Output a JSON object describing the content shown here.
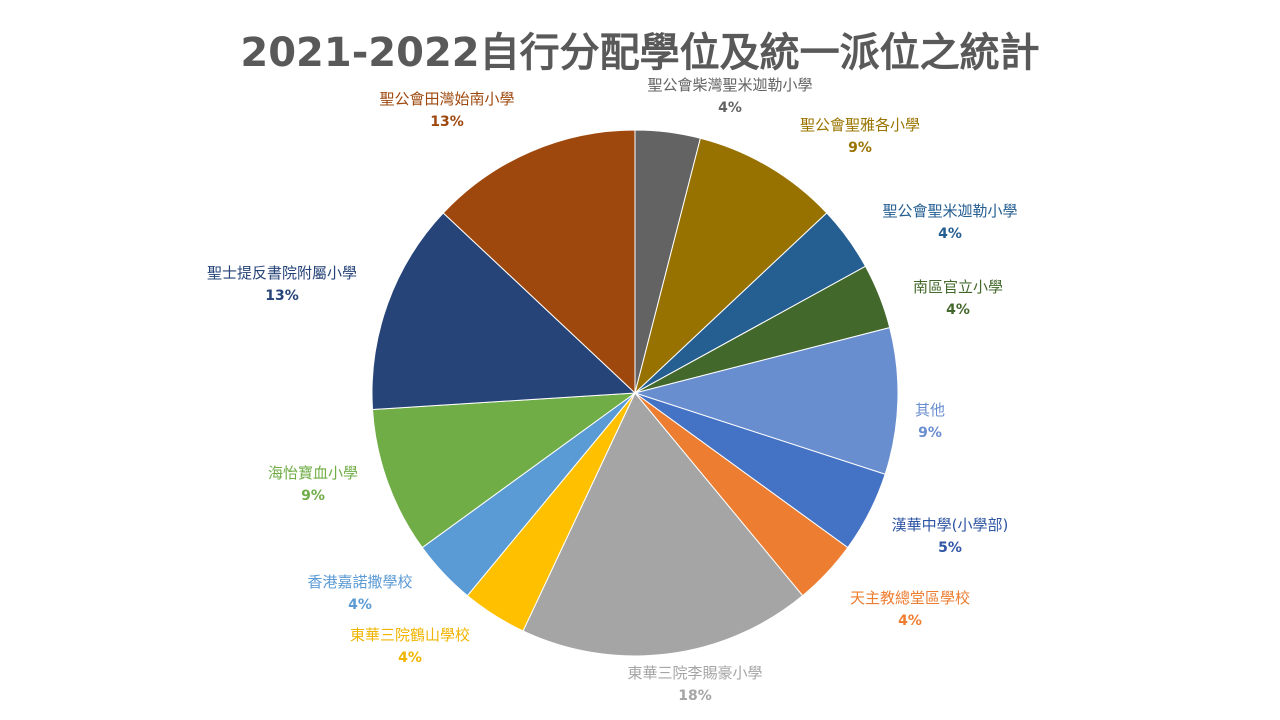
{
  "chart_data": {
    "type": "pie",
    "title": "2021-2022自行分配學位及統一派位之統計",
    "start_angle_deg": 0,
    "direction": "clockwise",
    "slices": [
      {
        "name": "聖公會柴灣聖米迦勒小學",
        "value": 4,
        "label": "4%",
        "color": "#636363",
        "label_color": "#636363"
      },
      {
        "name": "聖公會聖雅各小學",
        "value": 9,
        "label": "9%",
        "color": "#977200",
        "label_color": "#9a7400"
      },
      {
        "name": "聖公會聖米迦勒小學",
        "value": 4,
        "label": "4%",
        "color": "#255e91",
        "label_color": "#255e91"
      },
      {
        "name": "南區官立小學",
        "value": 4,
        "label": "4%",
        "color": "#43682b",
        "label_color": "#43682b"
      },
      {
        "name": "其他",
        "value": 9,
        "label": "9%",
        "color": "#698ed0",
        "label_color": "#698ed0"
      },
      {
        "name": "漢華中學(小學部)",
        "value": 5,
        "label": "5%",
        "color": "#4472c4",
        "label_color": "#2f55a4"
      },
      {
        "name": "天主教總堂區學校",
        "value": 4,
        "label": "4%",
        "color": "#ed7d31",
        "label_color": "#ed7d31"
      },
      {
        "name": "東華三院李賜豪小學",
        "value": 18,
        "label": "18%",
        "color": "#a5a5a5",
        "label_color": "#a5a5a5"
      },
      {
        "name": "東華三院鶴山學校",
        "value": 4,
        "label": "4%",
        "color": "#ffc000",
        "label_color": "#f0b400"
      },
      {
        "name": "香港嘉諾撒學校",
        "value": 4,
        "label": "4%",
        "color": "#5b9bd5",
        "label_color": "#5b9bd5"
      },
      {
        "name": "海怡寶血小學",
        "value": 9,
        "label": "9%",
        "color": "#70ad47",
        "label_color": "#70ad47"
      },
      {
        "name": "聖士提反書院附屬小學",
        "value": 13,
        "label": "13%",
        "color": "#264478",
        "label_color": "#264478"
      },
      {
        "name": "聖公會田灣始南小學",
        "value": 13,
        "label": "13%",
        "color": "#9e480e",
        "label_color": "#9e480e"
      }
    ]
  }
}
